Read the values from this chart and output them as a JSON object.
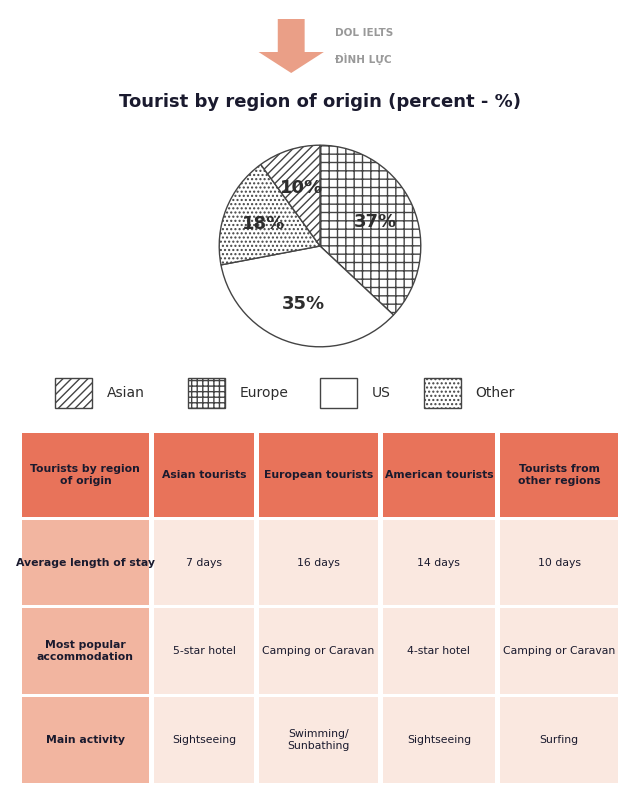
{
  "title": "Tourist by region of origin (percent - %)",
  "pie_values": [
    37,
    35,
    18,
    10
  ],
  "pie_labels": [
    "37%",
    "35%",
    "18%",
    "10%"
  ],
  "pie_categories": [
    "Europe",
    "US",
    "Other",
    "Asian"
  ],
  "pie_hatches": [
    "+++",
    "",
    "....",
    "////"
  ],
  "header_bg": "#E8735A",
  "odd_row_bg": "#F2B5A0",
  "even_row_bg": "#FAE8E0",
  "table_headers": [
    "Tourists by region\nof origin",
    "Asian tourists",
    "European tourists",
    "American tourists",
    "Tourists from\nother regions"
  ],
  "table_rows": [
    [
      "Average length of stay",
      "7 days",
      "16 days",
      "14 days",
      "10 days"
    ],
    [
      "Most popular\naccommodation",
      "5-star hotel",
      "Camping or Caravan",
      "4-star hotel",
      "Camping or Caravan"
    ],
    [
      "Main activity",
      "Sightseeing",
      "Swimming/\nSunbathing",
      "Sightseeing",
      "Surfing"
    ]
  ],
  "legend_labels": [
    "Asian",
    "Europe",
    "US",
    "Other"
  ],
  "legend_hatches": [
    "////",
    "+++",
    "",
    "...."
  ],
  "logo_text1": "DOL IELTS",
  "logo_text2": "ĐÌNH LỰC",
  "background_color": "#FFFFFF",
  "text_dark": "#1a1a2e"
}
